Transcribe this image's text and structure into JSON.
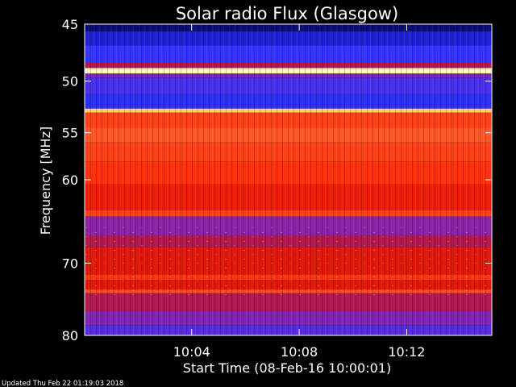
{
  "chart_data": {
    "type": "heatmap",
    "title": "Solar radio Flux (Glasgow)",
    "xlabel": "Start Time (08-Feb-16 10:00:01)",
    "ylabel": "Frequency [MHz]",
    "x_start": "10:00:01",
    "x_end": "10:15:10",
    "x_ticks": [
      {
        "label": "10:04",
        "time": "10:04:00"
      },
      {
        "label": "10:08",
        "time": "10:08:00"
      },
      {
        "label": "10:12",
        "time": "10:12:00"
      }
    ],
    "ylim": [
      45,
      80
    ],
    "y_scale": "log",
    "y_ticks": [
      45,
      50,
      55,
      60,
      70,
      80
    ],
    "colormap": [
      "#000033",
      "#1a1acc",
      "#3333ff",
      "#8822aa",
      "#cc1111",
      "#ff2200",
      "#ff6633",
      "#ffcc66",
      "#ffffdd"
    ],
    "bands": [
      {
        "f_min": 45.0,
        "f_max": 45.6,
        "level": 0.05
      },
      {
        "f_min": 45.6,
        "f_max": 46.8,
        "level": 0.15
      },
      {
        "f_min": 46.8,
        "f_max": 48.3,
        "level": 0.25
      },
      {
        "f_min": 48.3,
        "f_max": 48.8,
        "level": 0.45
      },
      {
        "f_min": 48.8,
        "f_max": 49.3,
        "level": 0.97
      },
      {
        "f_min": 49.3,
        "f_max": 49.7,
        "level": 0.35
      },
      {
        "f_min": 49.7,
        "f_max": 51.2,
        "level": 0.28
      },
      {
        "f_min": 51.2,
        "f_max": 52.6,
        "level": 0.22
      },
      {
        "f_min": 52.6,
        "f_max": 53.0,
        "level": 0.88
      },
      {
        "f_min": 53.0,
        "f_max": 54.5,
        "level": 0.68
      },
      {
        "f_min": 54.5,
        "f_max": 56.0,
        "level": 0.72
      },
      {
        "f_min": 56.0,
        "f_max": 58.0,
        "level": 0.68
      },
      {
        "f_min": 58.0,
        "f_max": 60.5,
        "level": 0.65
      },
      {
        "f_min": 60.5,
        "f_max": 63.5,
        "level": 0.58
      },
      {
        "f_min": 63.5,
        "f_max": 64.2,
        "level": 0.68
      },
      {
        "f_min": 64.2,
        "f_max": 66.5,
        "level": 0.38
      },
      {
        "f_min": 66.5,
        "f_max": 68.0,
        "level": 0.45
      },
      {
        "f_min": 68.0,
        "f_max": 71.5,
        "level": 0.55
      },
      {
        "f_min": 71.5,
        "f_max": 72.2,
        "level": 0.66
      },
      {
        "f_min": 72.2,
        "f_max": 73.5,
        "level": 0.55
      },
      {
        "f_min": 73.5,
        "f_max": 74.0,
        "level": 0.7
      },
      {
        "f_min": 74.0,
        "f_max": 76.5,
        "level": 0.45
      },
      {
        "f_min": 76.5,
        "f_max": 78.5,
        "level": 0.36
      },
      {
        "f_min": 78.5,
        "f_max": 80.0,
        "level": 0.3
      }
    ],
    "footer": "Updated Thu Feb 22 01:19:03 2018"
  }
}
